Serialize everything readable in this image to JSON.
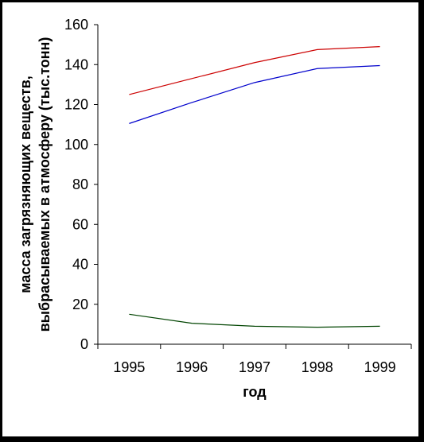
{
  "chart_data": {
    "type": "line",
    "x": [
      1995,
      1996,
      1997,
      1998,
      1999
    ],
    "categories": [
      "1995",
      "1996",
      "1997",
      "1998",
      "1999"
    ],
    "xlabel": "год",
    "ylabel_lines": [
      "масса загрязняющих веществ,",
      "выбрасываемых в атмосферу (тыс.тонн)"
    ],
    "ylim": [
      0,
      160
    ],
    "yticks": [
      "0",
      "20",
      "40",
      "60",
      "80",
      "100",
      "120",
      "140",
      "160"
    ],
    "grid": false,
    "legend": "none",
    "series": [
      {
        "color": "#cc0000",
        "values": [
          125,
          133,
          141,
          147.5,
          149
        ]
      },
      {
        "color": "#0000cc",
        "values": [
          110.5,
          121,
          131,
          138,
          139.5
        ]
      },
      {
        "color": "#004400",
        "values": [
          15,
          10.5,
          9,
          8.5,
          9
        ]
      }
    ]
  }
}
